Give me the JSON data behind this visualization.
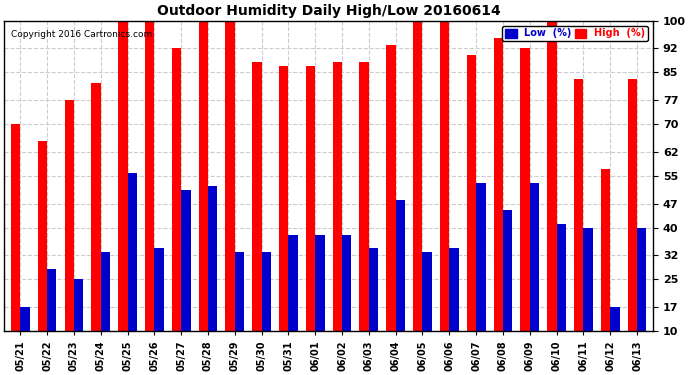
{
  "title": "Outdoor Humidity Daily High/Low 20160614",
  "copyright": "Copyright 2016 Cartronics.com",
  "dates": [
    "05/21",
    "05/22",
    "05/23",
    "05/24",
    "05/25",
    "05/26",
    "05/27",
    "05/28",
    "05/29",
    "05/30",
    "05/31",
    "06/01",
    "06/02",
    "06/03",
    "06/04",
    "06/05",
    "06/06",
    "06/07",
    "06/08",
    "06/09",
    "06/10",
    "06/11",
    "06/12",
    "06/13"
  ],
  "high": [
    70,
    65,
    77,
    82,
    100,
    100,
    92,
    100,
    100,
    88,
    87,
    87,
    88,
    88,
    93,
    100,
    100,
    90,
    95,
    92,
    100,
    83,
    57,
    83
  ],
  "low": [
    17,
    28,
    25,
    33,
    56,
    34,
    51,
    52,
    33,
    33,
    38,
    38,
    38,
    34,
    48,
    33,
    34,
    53,
    45,
    53,
    41,
    40,
    17,
    40
  ],
  "high_color": "#ff0000",
  "low_color": "#0000cc",
  "bg_color": "#ffffff",
  "grid_color": "#cccccc",
  "ylim": [
    10,
    100
  ],
  "yticks": [
    10,
    17,
    25,
    32,
    40,
    47,
    55,
    62,
    70,
    77,
    85,
    92,
    100
  ],
  "legend_low_label": "Low  (%)",
  "legend_high_label": "High  (%)",
  "bar_width": 0.35
}
